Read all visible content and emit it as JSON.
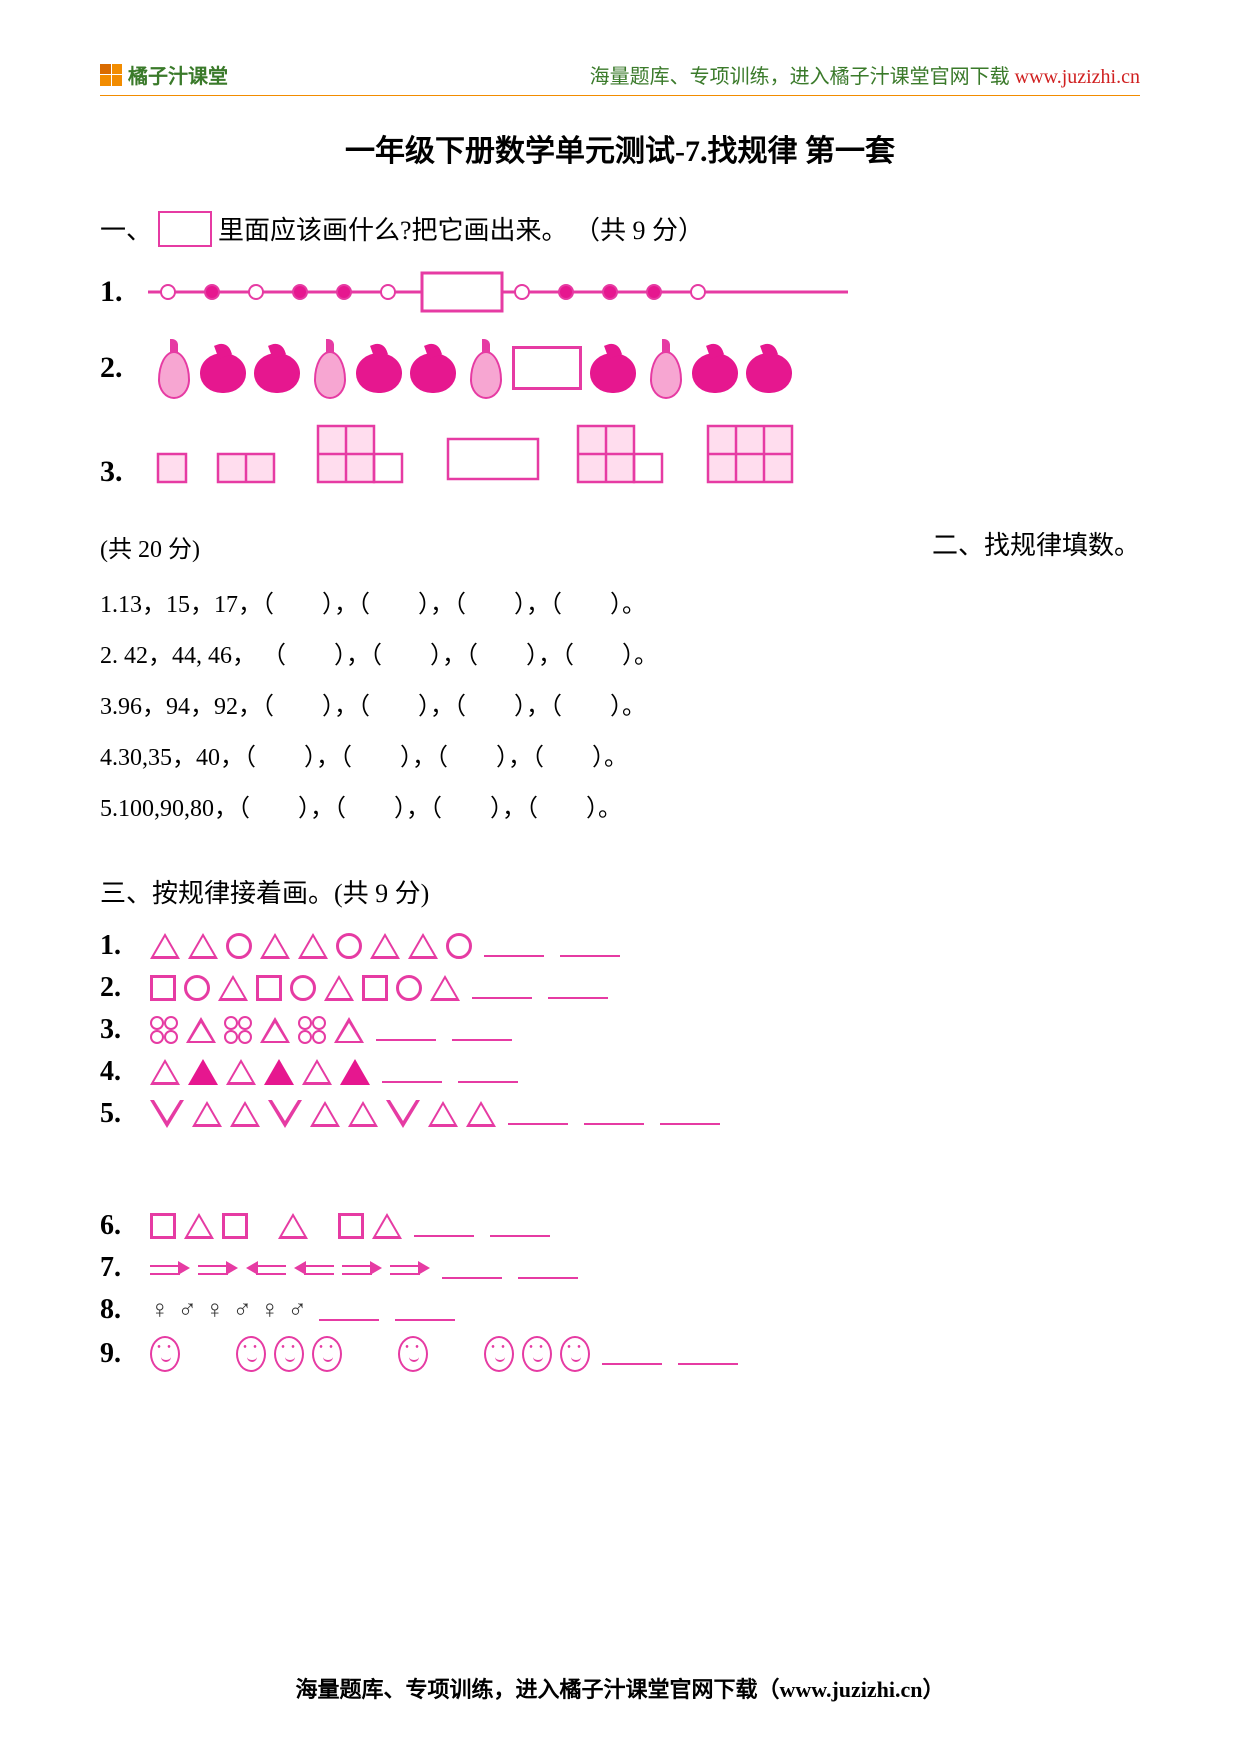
{
  "header": {
    "brand": "橘子汁课堂",
    "tagline_prefix": "海量题库、专项训练，进入橘子汁课堂官网下载 ",
    "url": "www.juzizhi.cn"
  },
  "title": "一年级下册数学单元测试-7.找规律 第一套",
  "section1": {
    "label_prefix": "一、",
    "label_suffix": "里面应该画什么?把它画出来。 （共 9 分）",
    "q1_num": "1.",
    "q2_num": "2.",
    "q3_num": "3.",
    "dot_pattern": [
      "open",
      "filled",
      "open",
      "filled",
      "filled",
      "open",
      "blank",
      "open",
      "filled",
      "filled",
      "filled",
      "open"
    ],
    "fruit_pattern": [
      "pear",
      "apple",
      "apple",
      "pear",
      "apple",
      "apple",
      "pear",
      "blank",
      "apple",
      "pear",
      "apple",
      "apple"
    ],
    "grid_colors": {
      "stroke": "#e63ba3",
      "blank_stroke": "#e63ba3"
    }
  },
  "section2": {
    "label": "二、找规律填数。",
    "points": "(共 20 分)",
    "lines": [
      "1.13，15，17，（　　），（　　），（　　），（　　）。",
      "2. 42，44, 46， （　　），（　　），（　　），（　　）。",
      "3.96，94，92，（　　），（　　），（　　），（　　）。",
      "4.30,35，40，（　　），（　　），（　　），（　　）。",
      "5.100,90,80，（　　），（　　），（　　），（　　）。"
    ]
  },
  "section3": {
    "label": "三、按规律接着画。(共 9 分)",
    "rows_group1": [
      {
        "num": "1.",
        "shapes": [
          "otri",
          "otri",
          "circ-o",
          "otri",
          "otri",
          "circ-o",
          "otri",
          "otri",
          "circ-o"
        ],
        "blanks": 2
      },
      {
        "num": "2.",
        "shapes": [
          "sq-o",
          "circ-o",
          "otri",
          "sq-o",
          "circ-o",
          "otri",
          "sq-o",
          "circ-o",
          "otri"
        ],
        "blanks": 2
      },
      {
        "num": "3.",
        "shapes": [
          "dbl4",
          "tri-dot",
          "dbl4",
          "tri-dot",
          "dbl4",
          "tri-dot"
        ],
        "blanks": 2
      },
      {
        "num": "4.",
        "shapes": [
          "otri",
          "ftri",
          "otri",
          "ftri",
          "otri",
          "ftri"
        ],
        "blanks": 2
      },
      {
        "num": "5.",
        "shapes": [
          "dtri-o",
          "otri",
          "otri",
          "dtri-o",
          "otri",
          "otri",
          "dtri-o",
          "otri",
          "otri"
        ],
        "blanks": 3
      }
    ],
    "rows_group2": [
      {
        "num": "6.",
        "shapes": [
          "sq-o",
          "otri",
          "sq-o",
          "space",
          "otri",
          "space",
          "sq-o",
          "otri"
        ],
        "blanks": 2
      },
      {
        "num": "7.",
        "shapes": [
          "arrow-r",
          "arrow-r",
          "arrow-l",
          "arrow-l",
          "arrow-r",
          "arrow-r"
        ],
        "blanks": 2
      },
      {
        "num": "8.",
        "shapes": [
          "sym-f",
          "sym-m",
          "sym-f",
          "sym-m",
          "sym-f",
          "sym-m"
        ],
        "blanks": 2
      },
      {
        "num": "9.",
        "shapes": [
          "face",
          "gap",
          "face",
          "face",
          "face",
          "gap",
          "face",
          "gap",
          "face",
          "face",
          "face"
        ],
        "blanks": 2
      }
    ]
  },
  "footer": {
    "text_prefix": "海量题库、专项训练，进入橘子汁课堂官网下载（",
    "url": "www.juzizhi.cn",
    "text_suffix": "）"
  },
  "colors": {
    "pink": "#e63ba3",
    "magenta": "#e6178f",
    "orange": "#f28c00",
    "green": "#3a7a2a",
    "black": "#000000"
  }
}
